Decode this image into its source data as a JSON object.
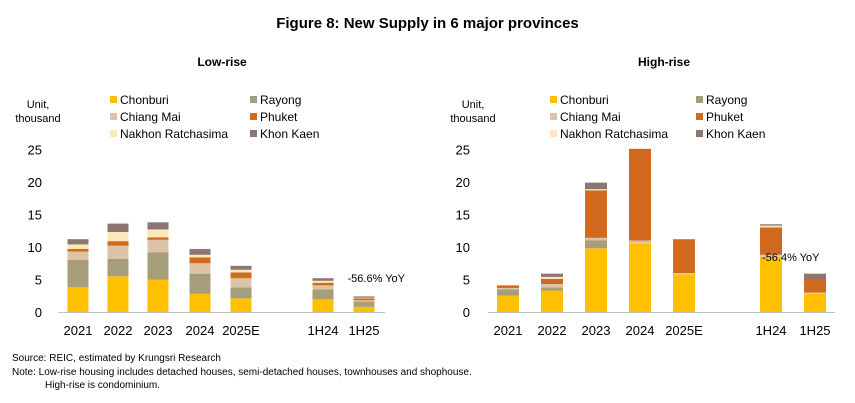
{
  "figure_title": "Figure 8: New Supply in 6 major provinces",
  "unit_label": [
    "Unit,",
    "thousand"
  ],
  "colors": {
    "Chonburi": "#FFC000",
    "Rayong": "#A59E78",
    "Chiang Mai": "#DDC4A6",
    "Phuket": "#D16A1C",
    "Nakhon Ratchasima": "#FBE7B7",
    "Khon Kaen": "#8C7672"
  },
  "chart_data": [
    {
      "type": "bar",
      "stacked": true,
      "title": "Low-rise",
      "xlabel": "",
      "ylabel": "Unit, thousand",
      "ylim": [
        0,
        25
      ],
      "yticks": [
        0,
        5,
        10,
        15,
        20,
        25
      ],
      "categories": [
        "2021",
        "2022",
        "2023",
        "2024",
        "2025E",
        "1H24",
        "1H25"
      ],
      "series": [
        {
          "name": "Chonburi",
          "values": [
            3.8,
            5.5,
            5.0,
            2.8,
            2.1,
            2.0,
            0.8
          ]
        },
        {
          "name": "Rayong",
          "values": [
            4.2,
            2.7,
            4.2,
            3.1,
            1.7,
            1.5,
            0.8
          ]
        },
        {
          "name": "Chiang Mai",
          "values": [
            1.3,
            2.0,
            1.9,
            1.6,
            1.4,
            0.6,
            0.2
          ]
        },
        {
          "name": "Phuket",
          "values": [
            0.4,
            0.7,
            0.4,
            0.9,
            0.9,
            0.4,
            0.3
          ]
        },
        {
          "name": "Nakhon Ratchasima",
          "values": [
            0.7,
            1.4,
            1.2,
            0.4,
            0.4,
            0.3,
            0.1
          ]
        },
        {
          "name": "Khon Kaen",
          "values": [
            0.8,
            1.3,
            1.1,
            0.9,
            0.6,
            0.4,
            0.2
          ]
        }
      ],
      "legend": [
        "Chonburi",
        "Rayong",
        "Chiang Mai",
        "Phuket",
        "Nakhon Ratchasima",
        "Khon Kaen"
      ],
      "annotations": [
        {
          "text": "-56.6% YoY",
          "category": "1H25",
          "value": 5.2
        }
      ]
    },
    {
      "type": "bar",
      "stacked": true,
      "title": "High-rise",
      "xlabel": "",
      "ylabel": "Unit, thousand",
      "ylim": [
        0,
        25
      ],
      "yticks": [
        0,
        5,
        10,
        15,
        20,
        25
      ],
      "categories": [
        "2021",
        "2022",
        "2023",
        "2024",
        "2025E",
        "1H24",
        "1H25"
      ],
      "series": [
        {
          "name": "Chonburi",
          "values": [
            2.5,
            3.3,
            9.8,
            10.5,
            5.8,
            8.5,
            2.8
          ]
        },
        {
          "name": "Rayong",
          "values": [
            1.0,
            0.5,
            1.2,
            0.0,
            0.0,
            0.0,
            0.0
          ]
        },
        {
          "name": "Chiang Mai",
          "values": [
            0.2,
            0.5,
            0.4,
            0.5,
            0.2,
            0.3,
            0.2
          ]
        },
        {
          "name": "Phuket",
          "values": [
            0.4,
            0.8,
            7.3,
            14.1,
            5.2,
            4.2,
            2.0
          ]
        },
        {
          "name": "Nakhon Ratchasima",
          "values": [
            0.0,
            0.3,
            0.2,
            0.0,
            0.0,
            0.3,
            0.0
          ]
        },
        {
          "name": "Khon Kaen",
          "values": [
            0.0,
            0.5,
            1.0,
            0.0,
            0.0,
            0.2,
            0.9
          ]
        }
      ],
      "legend": [
        "Chonburi",
        "Rayong",
        "Chiang Mai",
        "Phuket",
        "Nakhon Ratchasima",
        "Khon Kaen"
      ],
      "annotations": [
        {
          "text": "-56.4% YoY",
          "category": "1H25",
          "value": 8.5
        }
      ]
    }
  ],
  "notes": {
    "source": "Source: REIC, estimated by Krungsri Research",
    "line1": "Note: Low-rise housing  includes detached houses, semi-detached houses, townhouses and shophouse.",
    "line2": "High-rise is condominium."
  }
}
